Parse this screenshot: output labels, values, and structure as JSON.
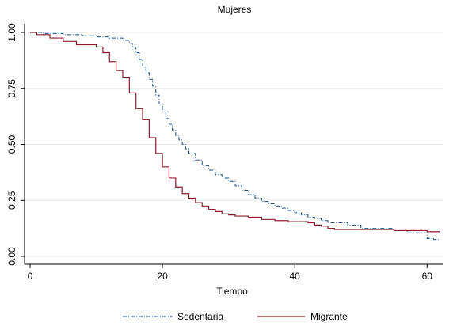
{
  "chart_data": {
    "type": "line",
    "title": "Mujeres",
    "xlabel": "Tiempo",
    "ylabel": "",
    "xlim": [
      0,
      62
    ],
    "ylim": [
      0,
      1
    ],
    "x_ticks": [
      "0",
      "20",
      "40",
      "60"
    ],
    "y_ticks": [
      "0.00",
      "0.25",
      "0.50",
      "0.75",
      "1.00"
    ],
    "grid": "horizontal",
    "legend_position": "bottom",
    "series": [
      {
        "name": "Sedentaria",
        "color": "#1a4f8a",
        "style": "dash-dot",
        "x": [
          0,
          2,
          5,
          8,
          10,
          12,
          14,
          15,
          15.5,
          16,
          16.5,
          17,
          17.5,
          18,
          18.5,
          19,
          19.5,
          20,
          20.5,
          21,
          21.5,
          22,
          22.5,
          23,
          23.5,
          24,
          25,
          26,
          27,
          28,
          29,
          30,
          31,
          32,
          33,
          34,
          35,
          36,
          37,
          38,
          39,
          40,
          41,
          42,
          43,
          44,
          45,
          48,
          50,
          55,
          57,
          60,
          61,
          62
        ],
        "y": [
          1.0,
          0.995,
          0.99,
          0.985,
          0.98,
          0.975,
          0.965,
          0.95,
          0.935,
          0.91,
          0.88,
          0.85,
          0.82,
          0.79,
          0.76,
          0.72,
          0.68,
          0.645,
          0.615,
          0.59,
          0.565,
          0.54,
          0.52,
          0.5,
          0.48,
          0.46,
          0.43,
          0.405,
          0.385,
          0.365,
          0.35,
          0.335,
          0.315,
          0.295,
          0.275,
          0.26,
          0.245,
          0.235,
          0.225,
          0.215,
          0.205,
          0.195,
          0.185,
          0.175,
          0.17,
          0.16,
          0.15,
          0.14,
          0.125,
          0.115,
          0.105,
          0.08,
          0.075,
          0.075
        ]
      },
      {
        "name": "Migrante",
        "color": "#8c1c2c",
        "style": "solid",
        "x": [
          0,
          1,
          3,
          5,
          7,
          10,
          11,
          12,
          13,
          14,
          15,
          16,
          17,
          18,
          19,
          20,
          21,
          22,
          23,
          24,
          25,
          26,
          27,
          28,
          29,
          30,
          31,
          33,
          35,
          37,
          39,
          42,
          43,
          44,
          45,
          46,
          48,
          55,
          60,
          62
        ],
        "y": [
          1.0,
          0.99,
          0.975,
          0.96,
          0.945,
          0.935,
          0.91,
          0.87,
          0.83,
          0.8,
          0.73,
          0.66,
          0.61,
          0.53,
          0.46,
          0.4,
          0.35,
          0.31,
          0.28,
          0.26,
          0.24,
          0.225,
          0.21,
          0.2,
          0.19,
          0.185,
          0.18,
          0.175,
          0.165,
          0.16,
          0.155,
          0.15,
          0.14,
          0.135,
          0.125,
          0.12,
          0.12,
          0.115,
          0.11,
          0.11
        ]
      }
    ]
  }
}
